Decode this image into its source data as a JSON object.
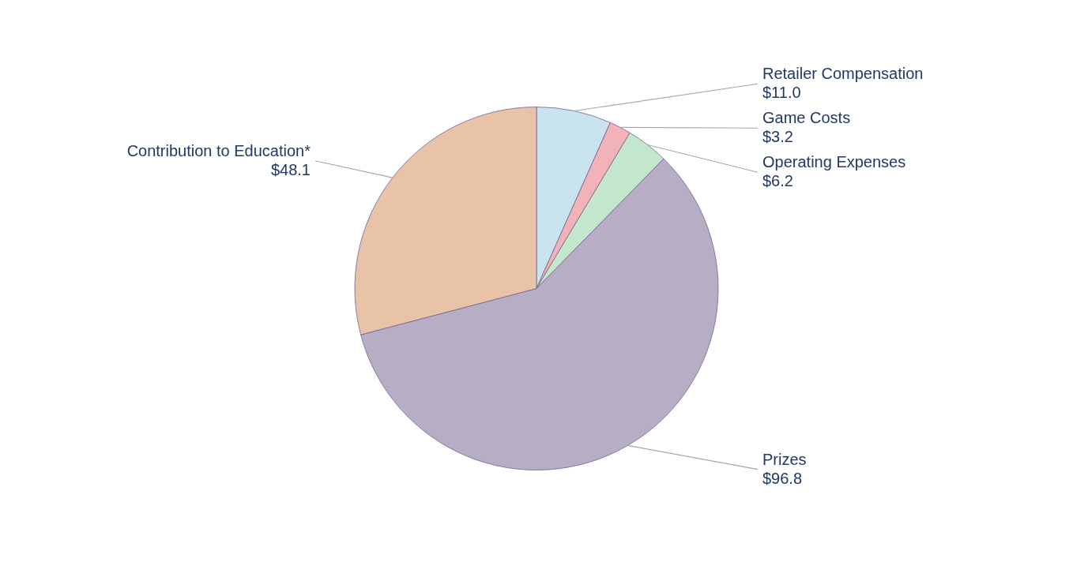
{
  "chart_data": {
    "type": "pie",
    "categories": [
      "Retailer Compensation",
      "Game Costs",
      "Operating Expenses",
      "Prizes",
      "Contribution to Education*"
    ],
    "values": [
      11.0,
      3.2,
      6.2,
      96.8,
      48.1
    ],
    "value_labels": [
      "$11.0",
      "$3.2",
      "$6.2",
      "$96.8",
      "$48.1"
    ],
    "colors": [
      "#c9e4ee",
      "#f2b3b8",
      "#c3e6cc",
      "#b7adc4",
      "#e8c3a8"
    ]
  }
}
